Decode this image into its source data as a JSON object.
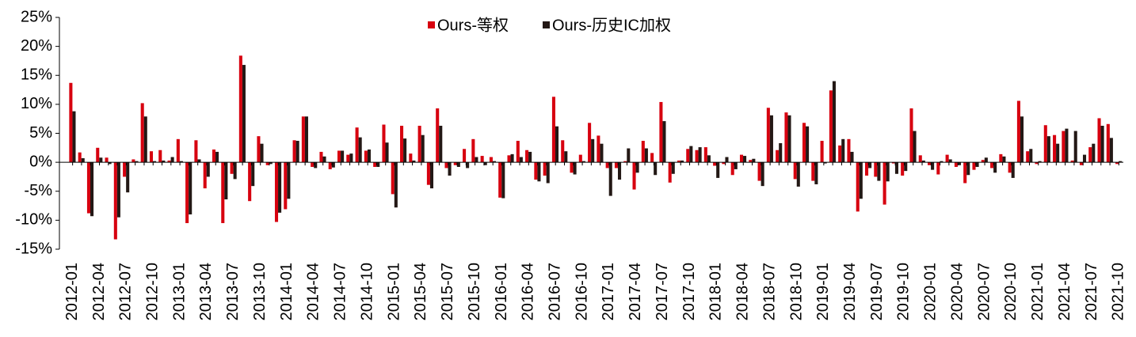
{
  "chart_data": {
    "type": "bar",
    "categories": [
      "2012-01",
      null,
      null,
      "2012-04",
      null,
      null,
      "2012-07",
      null,
      null,
      "2012-10",
      null,
      null,
      "2013-01",
      null,
      null,
      "2013-04",
      null,
      null,
      "2013-07",
      null,
      null,
      "2013-10",
      null,
      null,
      "2014-01",
      null,
      null,
      "2014-04",
      null,
      null,
      "2014-07",
      null,
      null,
      "2014-10",
      null,
      null,
      "2015-01",
      null,
      null,
      "2015-04",
      null,
      null,
      "2015-07",
      null,
      null,
      "2015-10",
      null,
      null,
      "2016-01",
      null,
      null,
      "2016-04",
      null,
      null,
      "2016-07",
      null,
      null,
      "2016-10",
      null,
      null,
      "2017-01",
      null,
      null,
      "2017-04",
      null,
      null,
      "2017-07",
      null,
      null,
      "2017-10",
      null,
      null,
      "2018-01",
      null,
      null,
      "2018-04",
      null,
      null,
      "2018-07",
      null,
      null,
      "2018-10",
      null,
      null,
      "2019-01",
      null,
      null,
      "2019-04",
      null,
      null,
      "2019-07",
      null,
      null,
      "2019-10",
      null,
      null,
      "2020-01",
      null,
      null,
      "2020-04",
      null,
      null,
      "2020-07",
      null,
      null,
      "2020-10",
      null,
      null,
      "2021-01",
      null,
      null,
      "2021-04",
      null,
      null,
      "2021-07",
      null,
      null,
      "2021-10"
    ],
    "series": [
      {
        "name": "Ours-等权",
        "color": "#d7000f",
        "values": [
          13.7,
          1.7,
          -8.8,
          2.5,
          0.8,
          -13.3,
          -2.5,
          0.5,
          10.2,
          1.9,
          2.1,
          0.3,
          4.0,
          -10.5,
          3.8,
          -4.5,
          2.2,
          -10.5,
          -2.0,
          18.4,
          -6.7,
          4.5,
          -0.5,
          -10.3,
          -8.1,
          3.8,
          7.9,
          -0.8,
          1.8,
          -1.2,
          2.0,
          1.3,
          6.0,
          2.0,
          -0.8,
          6.5,
          -5.5,
          6.3,
          1.5,
          6.3,
          -3.9,
          9.3,
          -1.0,
          -0.5,
          2.3,
          4.0,
          1.1,
          0.9,
          -6.1,
          1.2,
          3.7,
          2.1,
          -3.0,
          -2.3,
          11.3,
          3.8,
          -1.8,
          1.3,
          6.8,
          4.6,
          -1.0,
          -1.0,
          0.2,
          -4.7,
          3.7,
          1.6,
          10.4,
          -3.5,
          0.3,
          2.3,
          2.1,
          2.6,
          -0.6,
          -0.3,
          -2.2,
          1.3,
          0.4,
          -3.2,
          9.4,
          2.1,
          8.6,
          -2.9,
          6.8,
          -3.2,
          3.7,
          12.4,
          2.9,
          4.0,
          -8.5,
          -2.3,
          -2.5,
          -7.3,
          -0.2,
          -2.3,
          9.3,
          1.2,
          -0.5,
          -2.1,
          1.3,
          -0.8,
          -3.6,
          -1.3,
          0.4,
          -1.0,
          1.4,
          -1.8,
          10.6,
          1.9,
          -0.3,
          6.4,
          4.7,
          5.4,
          0.3,
          -0.5,
          2.6,
          7.6,
          6.6,
          -0.3
        ]
      },
      {
        "name": "Ours-历史IC加权",
        "color": "#231815",
        "values": [
          8.8,
          0.7,
          -9.3,
          0.8,
          -0.3,
          -9.5,
          -5.2,
          0.2,
          7.9,
          0.2,
          0.3,
          0.9,
          0.2,
          -9.0,
          0.5,
          -2.5,
          1.8,
          -6.4,
          -2.9,
          16.8,
          -4.1,
          3.2,
          -0.3,
          -8.7,
          -6.3,
          3.7,
          7.9,
          -1.0,
          1.0,
          -0.9,
          2.0,
          1.5,
          4.3,
          2.2,
          -0.8,
          3.4,
          -7.8,
          4.1,
          0.3,
          4.7,
          -4.5,
          6.3,
          -2.3,
          -0.8,
          -1.0,
          0.9,
          -0.5,
          0.2,
          -6.2,
          1.4,
          0.9,
          1.8,
          -3.3,
          -3.6,
          6.2,
          1.9,
          -2.1,
          0.2,
          4.0,
          3.2,
          -5.8,
          -3.0,
          2.4,
          -1.8,
          2.4,
          -2.2,
          7.1,
          -2.0,
          0.3,
          2.8,
          2.6,
          1.2,
          -2.7,
          0.9,
          -1.2,
          1.1,
          0.6,
          -4.1,
          8.1,
          3.3,
          8.1,
          -4.2,
          6.2,
          -3.8,
          -0.2,
          14.0,
          4.0,
          1.8,
          -6.3,
          -1.0,
          -3.2,
          -3.3,
          -2.0,
          -1.5,
          5.4,
          0.3,
          -1.3,
          0.2,
          0.5,
          -0.5,
          -2.2,
          -0.8,
          0.8,
          -1.8,
          1.0,
          -2.7,
          7.9,
          2.3,
          0.2,
          4.5,
          3.2,
          5.8,
          5.4,
          1.3,
          3.2,
          6.3,
          4.2,
          0.2
        ]
      }
    ],
    "ylim": [
      -15,
      25
    ],
    "yticks": [
      {
        "value": -15,
        "label": "-15%"
      },
      {
        "value": -10,
        "label": "-10%"
      },
      {
        "value": -5,
        "label": "-5%"
      },
      {
        "value": 0,
        "label": "0%"
      },
      {
        "value": 5,
        "label": "5%"
      },
      {
        "value": 10,
        "label": "10%"
      },
      {
        "value": 15,
        "label": "15%"
      },
      {
        "value": 20,
        "label": "20%"
      },
      {
        "value": 25,
        "label": "25%"
      }
    ],
    "legend": "top"
  }
}
